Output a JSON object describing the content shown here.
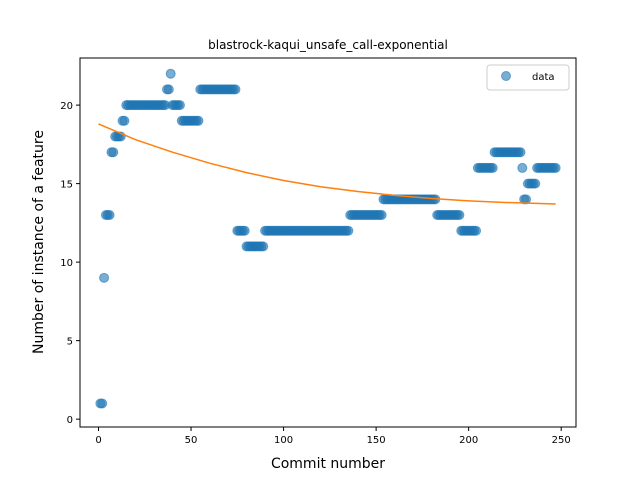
{
  "chart_data": {
    "type": "scatter",
    "title": "blastrock-kaqui_unsafe_call-exponential",
    "xlabel": "Commit number",
    "ylabel": "Number of instance of a feature",
    "xlim": [
      -10,
      258
    ],
    "ylim": [
      -0.5,
      23
    ],
    "xticks": [
      0,
      50,
      100,
      150,
      200,
      250
    ],
    "yticks": [
      0,
      5,
      10,
      15,
      20
    ],
    "grid": false,
    "legend": {
      "position": "top-right",
      "entries": [
        "data"
      ]
    },
    "colors": {
      "data": "#1f77b4",
      "fit": "#ff7f0e"
    },
    "data_runs": [
      {
        "x_start": 1,
        "x_end": 2,
        "y": 1
      },
      {
        "x_start": 3,
        "x_end": 3,
        "y": 9
      },
      {
        "x_start": 4,
        "x_end": 6,
        "y": 13
      },
      {
        "x_start": 7,
        "x_end": 8,
        "y": 17
      },
      {
        "x_start": 9,
        "x_end": 12,
        "y": 18
      },
      {
        "x_start": 13,
        "x_end": 14,
        "y": 19
      },
      {
        "x_start": 15,
        "x_end": 36,
        "y": 20
      },
      {
        "x_start": 37,
        "x_end": 38,
        "y": 21
      },
      {
        "x_start": 39,
        "x_end": 39,
        "y": 22
      },
      {
        "x_start": 40,
        "x_end": 44,
        "y": 20
      },
      {
        "x_start": 45,
        "x_end": 54,
        "y": 19
      },
      {
        "x_start": 55,
        "x_end": 74,
        "y": 21
      },
      {
        "x_start": 75,
        "x_end": 79,
        "y": 12
      },
      {
        "x_start": 80,
        "x_end": 89,
        "y": 11
      },
      {
        "x_start": 90,
        "x_end": 135,
        "y": 12
      },
      {
        "x_start": 136,
        "x_end": 153,
        "y": 13
      },
      {
        "x_start": 154,
        "x_end": 182,
        "y": 14
      },
      {
        "x_start": 183,
        "x_end": 195,
        "y": 13
      },
      {
        "x_start": 196,
        "x_end": 204,
        "y": 12
      },
      {
        "x_start": 205,
        "x_end": 213,
        "y": 16
      },
      {
        "x_start": 214,
        "x_end": 228,
        "y": 17
      },
      {
        "x_start": 229,
        "x_end": 229,
        "y": 16
      },
      {
        "x_start": 230,
        "x_end": 231,
        "y": 14
      },
      {
        "x_start": 232,
        "x_end": 236,
        "y": 15
      },
      {
        "x_start": 237,
        "x_end": 247,
        "y": 16
      }
    ],
    "fit_curve": [
      {
        "x": 0,
        "y": 18.8
      },
      {
        "x": 20,
        "y": 17.8
      },
      {
        "x": 40,
        "y": 17.0
      },
      {
        "x": 60,
        "y": 16.3
      },
      {
        "x": 80,
        "y": 15.7
      },
      {
        "x": 100,
        "y": 15.2
      },
      {
        "x": 120,
        "y": 14.8
      },
      {
        "x": 140,
        "y": 14.5
      },
      {
        "x": 160,
        "y": 14.25
      },
      {
        "x": 180,
        "y": 14.05
      },
      {
        "x": 200,
        "y": 13.9
      },
      {
        "x": 220,
        "y": 13.8
      },
      {
        "x": 247,
        "y": 13.7
      }
    ]
  }
}
